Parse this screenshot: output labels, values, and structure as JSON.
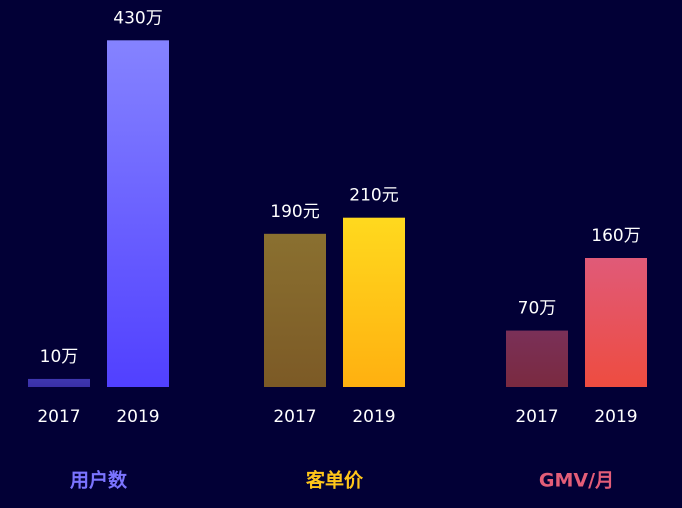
{
  "chart_data": {
    "type": "bar",
    "ylim": [
      0,
      480
    ],
    "background": "#020036",
    "groups": [
      {
        "name": "用户数",
        "color": "#7b74ff",
        "categories": [
          "2017",
          "2019"
        ],
        "values": [
          10,
          430
        ],
        "value_labels": [
          "10万",
          "430万"
        ],
        "bar_colors": [
          {
            "top": "#3f37b0",
            "bottom": "#3a30a8"
          },
          {
            "top": "#8583ff",
            "bottom": "#5140ff"
          }
        ]
      },
      {
        "name": "客单价",
        "color": "#ffc61a",
        "categories": [
          "2017",
          "2019"
        ],
        "values": [
          190,
          210
        ],
        "value_labels": [
          "190元",
          "210元"
        ],
        "bar_colors": [
          {
            "top": "#8a7030",
            "bottom": "#7c5a26"
          },
          {
            "top": "#ffd91e",
            "bottom": "#ffb010"
          }
        ]
      },
      {
        "name": "GMV/月",
        "color": "#e35d78",
        "categories": [
          "2017",
          "2019"
        ],
        "values": [
          70,
          160
        ],
        "value_labels": [
          "70万",
          "160万"
        ],
        "bar_colors": [
          {
            "top": "#7a3058",
            "bottom": "#7a2a40"
          },
          {
            "top": "#e05a78",
            "bottom": "#ee4c40"
          }
        ]
      }
    ]
  }
}
